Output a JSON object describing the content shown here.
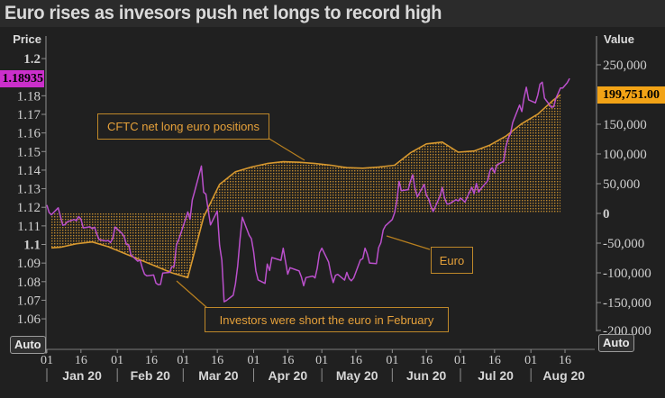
{
  "title": "Euro rises as invesors push net longs to record high",
  "auto_buttons": {
    "left": "Auto",
    "right": "Auto"
  },
  "axes": {
    "left": {
      "label": "Price",
      "highlight": {
        "label": "1.18935",
        "value": 1.18935,
        "bg": "#cb2fcb"
      },
      "ticks": [
        {
          "label": "1.2",
          "value": 1.2,
          "bold": true
        },
        {
          "label": "1.18",
          "value": 1.18,
          "bold": false
        },
        {
          "label": "1.17",
          "value": 1.17,
          "bold": false
        },
        {
          "label": "1.16",
          "value": 1.16,
          "bold": false
        },
        {
          "label": "1.15",
          "value": 1.15,
          "bold": false
        },
        {
          "label": "1.14",
          "value": 1.14,
          "bold": false
        },
        {
          "label": "1.13",
          "value": 1.13,
          "bold": false
        },
        {
          "label": "1.12",
          "value": 1.12,
          "bold": false
        },
        {
          "label": "1.11",
          "value": 1.11,
          "bold": false
        },
        {
          "label": "1.1",
          "value": 1.1,
          "bold": true
        },
        {
          "label": "1.09",
          "value": 1.09,
          "bold": false
        },
        {
          "label": "1.08",
          "value": 1.08,
          "bold": false
        },
        {
          "label": "1.07",
          "value": 1.07,
          "bold": false
        },
        {
          "label": "1.06",
          "value": 1.06,
          "bold": false
        }
      ]
    },
    "right": {
      "label": "Value",
      "highlight": {
        "label": "199,751.00",
        "value": 199751,
        "bg": "#f2a316"
      },
      "ticks": [
        {
          "label": "250,000",
          "value": 250000,
          "bold": false
        },
        {
          "label": "150,000",
          "value": 150000,
          "bold": false
        },
        {
          "label": "100,000",
          "value": 100000,
          "bold": false
        },
        {
          "label": "50,000",
          "value": 50000,
          "bold": false
        },
        {
          "label": "0",
          "value": 0,
          "bold": true
        },
        {
          "label": "-50,000",
          "value": -50000,
          "bold": false
        },
        {
          "label": "-100,000",
          "value": -100000,
          "bold": false
        },
        {
          "label": "-150,000",
          "value": -150000,
          "bold": false
        },
        {
          "label": "-200,000",
          "value": -200000,
          "bold": false
        }
      ]
    },
    "x": {
      "day_ticks": [
        {
          "day": 1,
          "label": "01"
        },
        {
          "day": 16,
          "label": "16"
        },
        {
          "day": 32,
          "label": "01"
        },
        {
          "day": 47,
          "label": "16"
        },
        {
          "day": 61,
          "label": "01"
        },
        {
          "day": 76,
          "label": "16"
        },
        {
          "day": 92,
          "label": "01"
        },
        {
          "day": 107,
          "label": "16"
        },
        {
          "day": 122,
          "label": "01"
        },
        {
          "day": 137,
          "label": "16"
        },
        {
          "day": 153,
          "label": "01"
        },
        {
          "day": 168,
          "label": "16"
        },
        {
          "day": 183,
          "label": "01"
        },
        {
          "day": 198,
          "label": "16"
        },
        {
          "day": 214,
          "label": "01"
        },
        {
          "day": 229,
          "label": "16"
        }
      ],
      "months": [
        {
          "label": "Jan 20",
          "start_day": 1
        },
        {
          "label": "Feb 20",
          "start_day": 32
        },
        {
          "label": "Mar 20",
          "start_day": 61
        },
        {
          "label": "Apr 20",
          "start_day": 92
        },
        {
          "label": "May 20",
          "start_day": 122
        },
        {
          "label": "Jun 20",
          "start_day": 153
        },
        {
          "label": "Jul 20",
          "start_day": 183
        },
        {
          "label": "Aug 20",
          "start_day": 214
        }
      ],
      "end_day": 243
    }
  },
  "annotations": [
    {
      "id": "cftc",
      "text": "CFTC net long euro positions"
    },
    {
      "id": "euro",
      "text": "Euro"
    },
    {
      "id": "short_feb",
      "text": "Investors were short the euro in February"
    }
  ],
  "chart_data": {
    "type": "line",
    "title": "Euro rises as invesors push net longs to record high",
    "x_unit": "day_of_year_2020",
    "xlim_days": [
      1,
      243
    ],
    "left_ylim": [
      1.0426,
      1.2073
    ],
    "right_ylim": [
      -231800,
      283300
    ],
    "grid": false,
    "series": [
      {
        "name": "CFTC net long euro positions",
        "type": "area",
        "axis": "right",
        "color": "#d8992f",
        "fill": "orange-dot-hatch-to-zero-baseline",
        "last_value": 199751,
        "points": [
          [
            3,
            -58000
          ],
          [
            7,
            -57000
          ],
          [
            14,
            -51000
          ],
          [
            21,
            -48000
          ],
          [
            28,
            -56000
          ],
          [
            35,
            -67000
          ],
          [
            42,
            -78000
          ],
          [
            49,
            -89000
          ],
          [
            56,
            -100000
          ],
          [
            63,
            -108000
          ],
          [
            70,
            -6000
          ],
          [
            77,
            49000
          ],
          [
            84,
            70000
          ],
          [
            91,
            78000
          ],
          [
            98,
            84000
          ],
          [
            105,
            87000
          ],
          [
            112,
            86000
          ],
          [
            119,
            84000
          ],
          [
            126,
            81000
          ],
          [
            133,
            77000
          ],
          [
            140,
            76000
          ],
          [
            147,
            78000
          ],
          [
            154,
            81000
          ],
          [
            161,
            102000
          ],
          [
            168,
            117000
          ],
          [
            175,
            120000
          ],
          [
            182,
            103000
          ],
          [
            189,
            105000
          ],
          [
            196,
            115000
          ],
          [
            203,
            130000
          ],
          [
            210,
            151000
          ],
          [
            217,
            167000
          ],
          [
            224,
            191000
          ],
          [
            227,
            199751
          ]
        ]
      },
      {
        "name": "Euro",
        "type": "line",
        "axis": "left",
        "color": "#bb50cc",
        "last_value": 1.18935,
        "points": [
          [
            1,
            1.1212
          ],
          [
            2,
            1.1172
          ],
          [
            3,
            1.116
          ],
          [
            6,
            1.1197
          ],
          [
            7,
            1.115
          ],
          [
            8,
            1.1103
          ],
          [
            9,
            1.1107
          ],
          [
            10,
            1.1122
          ],
          [
            13,
            1.1134
          ],
          [
            14,
            1.1128
          ],
          [
            15,
            1.115
          ],
          [
            16,
            1.1136
          ],
          [
            17,
            1.1089
          ],
          [
            20,
            1.1095
          ],
          [
            21,
            1.1085
          ],
          [
            22,
            1.1093
          ],
          [
            23,
            1.1055
          ],
          [
            24,
            1.1026
          ],
          [
            27,
            1.1019
          ],
          [
            28,
            1.1022
          ],
          [
            29,
            1.101
          ],
          [
            30,
            1.1032
          ],
          [
            31,
            1.1094
          ],
          [
            34,
            1.106
          ],
          [
            35,
            1.1043
          ],
          [
            36,
            1.1
          ],
          [
            37,
            1.0998
          ],
          [
            38,
            1.0945
          ],
          [
            41,
            1.091
          ],
          [
            42,
            1.0917
          ],
          [
            43,
            1.0874
          ],
          [
            44,
            1.084
          ],
          [
            45,
            1.0831
          ],
          [
            48,
            1.0836
          ],
          [
            49,
            1.0792
          ],
          [
            50,
            1.0784
          ],
          [
            51,
            1.0785
          ],
          [
            52,
            1.0846
          ],
          [
            55,
            1.085
          ],
          [
            56,
            1.088
          ],
          [
            57,
            1.0881
          ],
          [
            58,
            1.0997
          ],
          [
            59,
            1.1026
          ],
          [
            62,
            1.1134
          ],
          [
            63,
            1.1175
          ],
          [
            64,
            1.1135
          ],
          [
            65,
            1.124
          ],
          [
            66,
            1.1283
          ],
          [
            69,
            1.1422
          ],
          [
            70,
            1.1281
          ],
          [
            71,
            1.1271
          ],
          [
            72,
            1.1184
          ],
          [
            73,
            1.1105
          ],
          [
            76,
            1.118
          ],
          [
            77,
            1.0995
          ],
          [
            78,
            1.0915
          ],
          [
            79,
            1.0692
          ],
          [
            80,
            1.0698
          ],
          [
            83,
            1.0727
          ],
          [
            84,
            1.0789
          ],
          [
            85,
            1.0885
          ],
          [
            86,
            1.103
          ],
          [
            87,
            1.1147
          ],
          [
            90,
            1.105
          ],
          [
            91,
            1.1031
          ],
          [
            92,
            1.096
          ],
          [
            93,
            1.0857
          ],
          [
            94,
            1.0809
          ],
          [
            97,
            1.0791
          ],
          [
            98,
            1.0895
          ],
          [
            99,
            1.086
          ],
          [
            100,
            1.093
          ],
          [
            104,
            1.0915
          ],
          [
            105,
            1.098
          ],
          [
            106,
            1.091
          ],
          [
            107,
            1.084
          ],
          [
            108,
            1.0875
          ],
          [
            111,
            1.0862
          ],
          [
            112,
            1.0858
          ],
          [
            113,
            1.0825
          ],
          [
            114,
            1.0778
          ],
          [
            115,
            1.0822
          ],
          [
            118,
            1.083
          ],
          [
            119,
            1.082
          ],
          [
            120,
            1.0873
          ],
          [
            121,
            1.0955
          ],
          [
            122,
            1.098
          ],
          [
            125,
            1.0905
          ],
          [
            126,
            1.084
          ],
          [
            127,
            1.0795
          ],
          [
            128,
            1.0834
          ],
          [
            129,
            1.0839
          ],
          [
            132,
            1.0808
          ],
          [
            133,
            1.085
          ],
          [
            134,
            1.0817
          ],
          [
            135,
            1.0805
          ],
          [
            136,
            1.082
          ],
          [
            139,
            1.0917
          ],
          [
            140,
            1.0924
          ],
          [
            141,
            1.098
          ],
          [
            142,
            1.0949
          ],
          [
            143,
            1.09
          ],
          [
            146,
            1.0897
          ],
          [
            147,
            1.0983
          ],
          [
            148,
            1.101
          ],
          [
            149,
            1.1078
          ],
          [
            150,
            1.1101
          ],
          [
            153,
            1.1134
          ],
          [
            154,
            1.117
          ],
          [
            155,
            1.1233
          ],
          [
            156,
            1.1339
          ],
          [
            157,
            1.1289
          ],
          [
            160,
            1.1295
          ],
          [
            161,
            1.1341
          ],
          [
            162,
            1.1375
          ],
          [
            163,
            1.13
          ],
          [
            164,
            1.1256
          ],
          [
            167,
            1.1323
          ],
          [
            168,
            1.1264
          ],
          [
            169,
            1.1245
          ],
          [
            170,
            1.1206
          ],
          [
            171,
            1.1177
          ],
          [
            174,
            1.126
          ],
          [
            175,
            1.1307
          ],
          [
            176,
            1.1251
          ],
          [
            177,
            1.1218
          ],
          [
            178,
            1.1218
          ],
          [
            181,
            1.1241
          ],
          [
            182,
            1.1234
          ],
          [
            183,
            1.125
          ],
          [
            184,
            1.124
          ],
          [
            185,
            1.1228
          ],
          [
            188,
            1.1308
          ],
          [
            189,
            1.1273
          ],
          [
            190,
            1.1329
          ],
          [
            191,
            1.1281
          ],
          [
            192,
            1.13
          ],
          [
            195,
            1.1343
          ],
          [
            196,
            1.1398
          ],
          [
            197,
            1.1413
          ],
          [
            198,
            1.1385
          ],
          [
            199,
            1.1428
          ],
          [
            202,
            1.1447
          ],
          [
            203,
            1.1525
          ],
          [
            204,
            1.1571
          ],
          [
            205,
            1.1596
          ],
          [
            206,
            1.1656
          ],
          [
            209,
            1.175
          ],
          [
            210,
            1.1715
          ],
          [
            211,
            1.179
          ],
          [
            212,
            1.1846
          ],
          [
            213,
            1.1778
          ],
          [
            216,
            1.1762
          ],
          [
            217,
            1.1803
          ],
          [
            218,
            1.1863
          ],
          [
            219,
            1.1873
          ],
          [
            220,
            1.1787
          ],
          [
            223,
            1.1738
          ],
          [
            224,
            1.174
          ],
          [
            225,
            1.1786
          ],
          [
            226,
            1.1813
          ],
          [
            227,
            1.1842
          ],
          [
            228,
            1.1842
          ],
          [
            230,
            1.187
          ],
          [
            231,
            1.18935
          ]
        ]
      }
    ],
    "colors": {
      "euro_line": "#bb50cc",
      "euro_tag_bg": "#cb2fcb",
      "cftc_line": "#d8992f",
      "cftc_tag_bg": "#f2a316",
      "annotation": "#e6a13a",
      "axis_text": "#cfcfcf",
      "background": "#202020"
    }
  }
}
